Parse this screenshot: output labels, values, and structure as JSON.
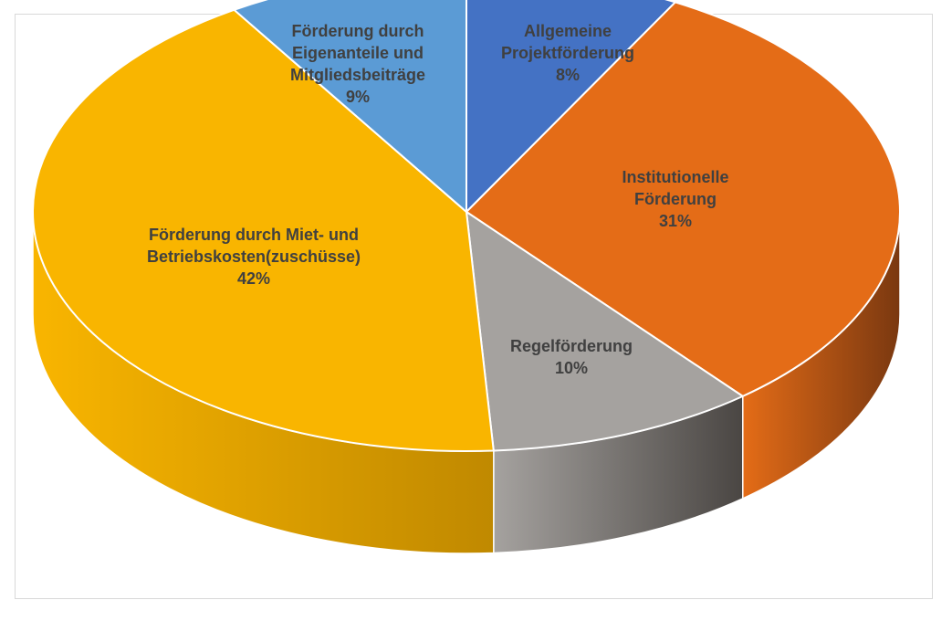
{
  "chart_data": {
    "type": "pie",
    "style": "3d",
    "title": "",
    "slices": [
      {
        "label_lines": [
          "Allgemeine",
          "Projektförderung"
        ],
        "percent_label": "8%",
        "value": 8,
        "color": "#4472C4",
        "side_color": "#2F5597"
      },
      {
        "label_lines": [
          "Institutionelle",
          "Förderung"
        ],
        "percent_label": "31%",
        "value": 31,
        "color": "#E46C17",
        "side_color": "#7A3810"
      },
      {
        "label_lines": [
          "Regelförderung"
        ],
        "percent_label": "10%",
        "value": 10,
        "color": "#A5A29F",
        "side_color": "#4A4643"
      },
      {
        "label_lines": [
          "Förderung durch Miet- und",
          "Betriebskosten(zuschüsse)"
        ],
        "percent_label": "42%",
        "value": 42,
        "color": "#F9B500",
        "side_color": "#C08900"
      },
      {
        "label_lines": [
          "Förderung durch",
          "Eigenanteile und",
          "Mitgliedsbeiträge"
        ],
        "percent_label": "9%",
        "value": 9,
        "color": "#5B9BD5",
        "side_color": "#2E6AA0"
      }
    ],
    "legend": "none"
  }
}
